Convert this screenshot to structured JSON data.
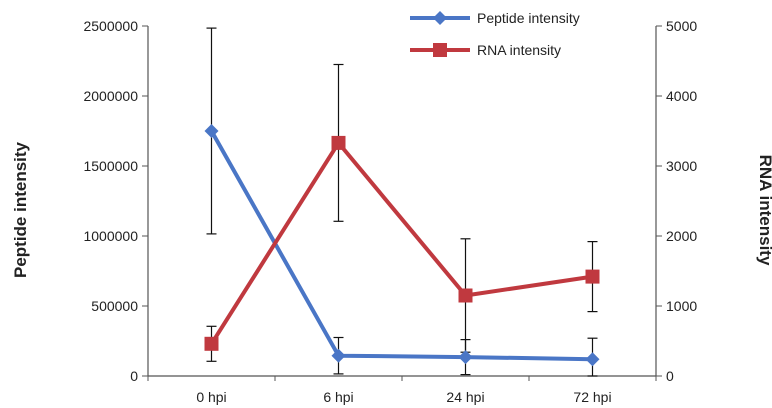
{
  "chart_data": {
    "type": "line",
    "categories": [
      "0 hpi",
      "6 hpi",
      "24 hpi",
      "72 hpi"
    ],
    "y_left": {
      "label": "Peptide intensity",
      "ylim": [
        0,
        2500000
      ],
      "ticks": [
        "0",
        "500000",
        "1000000",
        "1500000",
        "2000000",
        "2500000"
      ]
    },
    "y_right": {
      "label": "RNA intensity",
      "ylim": [
        0,
        5000
      ],
      "ticks": [
        "0",
        "1000",
        "2000",
        "3000",
        "4000",
        "5000"
      ]
    },
    "series": [
      {
        "name": "Peptide intensity",
        "axis": "left",
        "color": "#4A76C6",
        "marker": "diamond",
        "values": [
          1750000,
          145000,
          135000,
          120000
        ],
        "error": [
          735000,
          130000,
          125000,
          150000
        ]
      },
      {
        "name": "RNA intensity",
        "axis": "right",
        "color": "#C0393F",
        "marker": "square",
        "values": [
          460,
          3330,
          1150,
          1420
        ],
        "error": [
          250,
          1120,
          810,
          500
        ]
      }
    ],
    "grid": false,
    "legend": "top-right"
  }
}
